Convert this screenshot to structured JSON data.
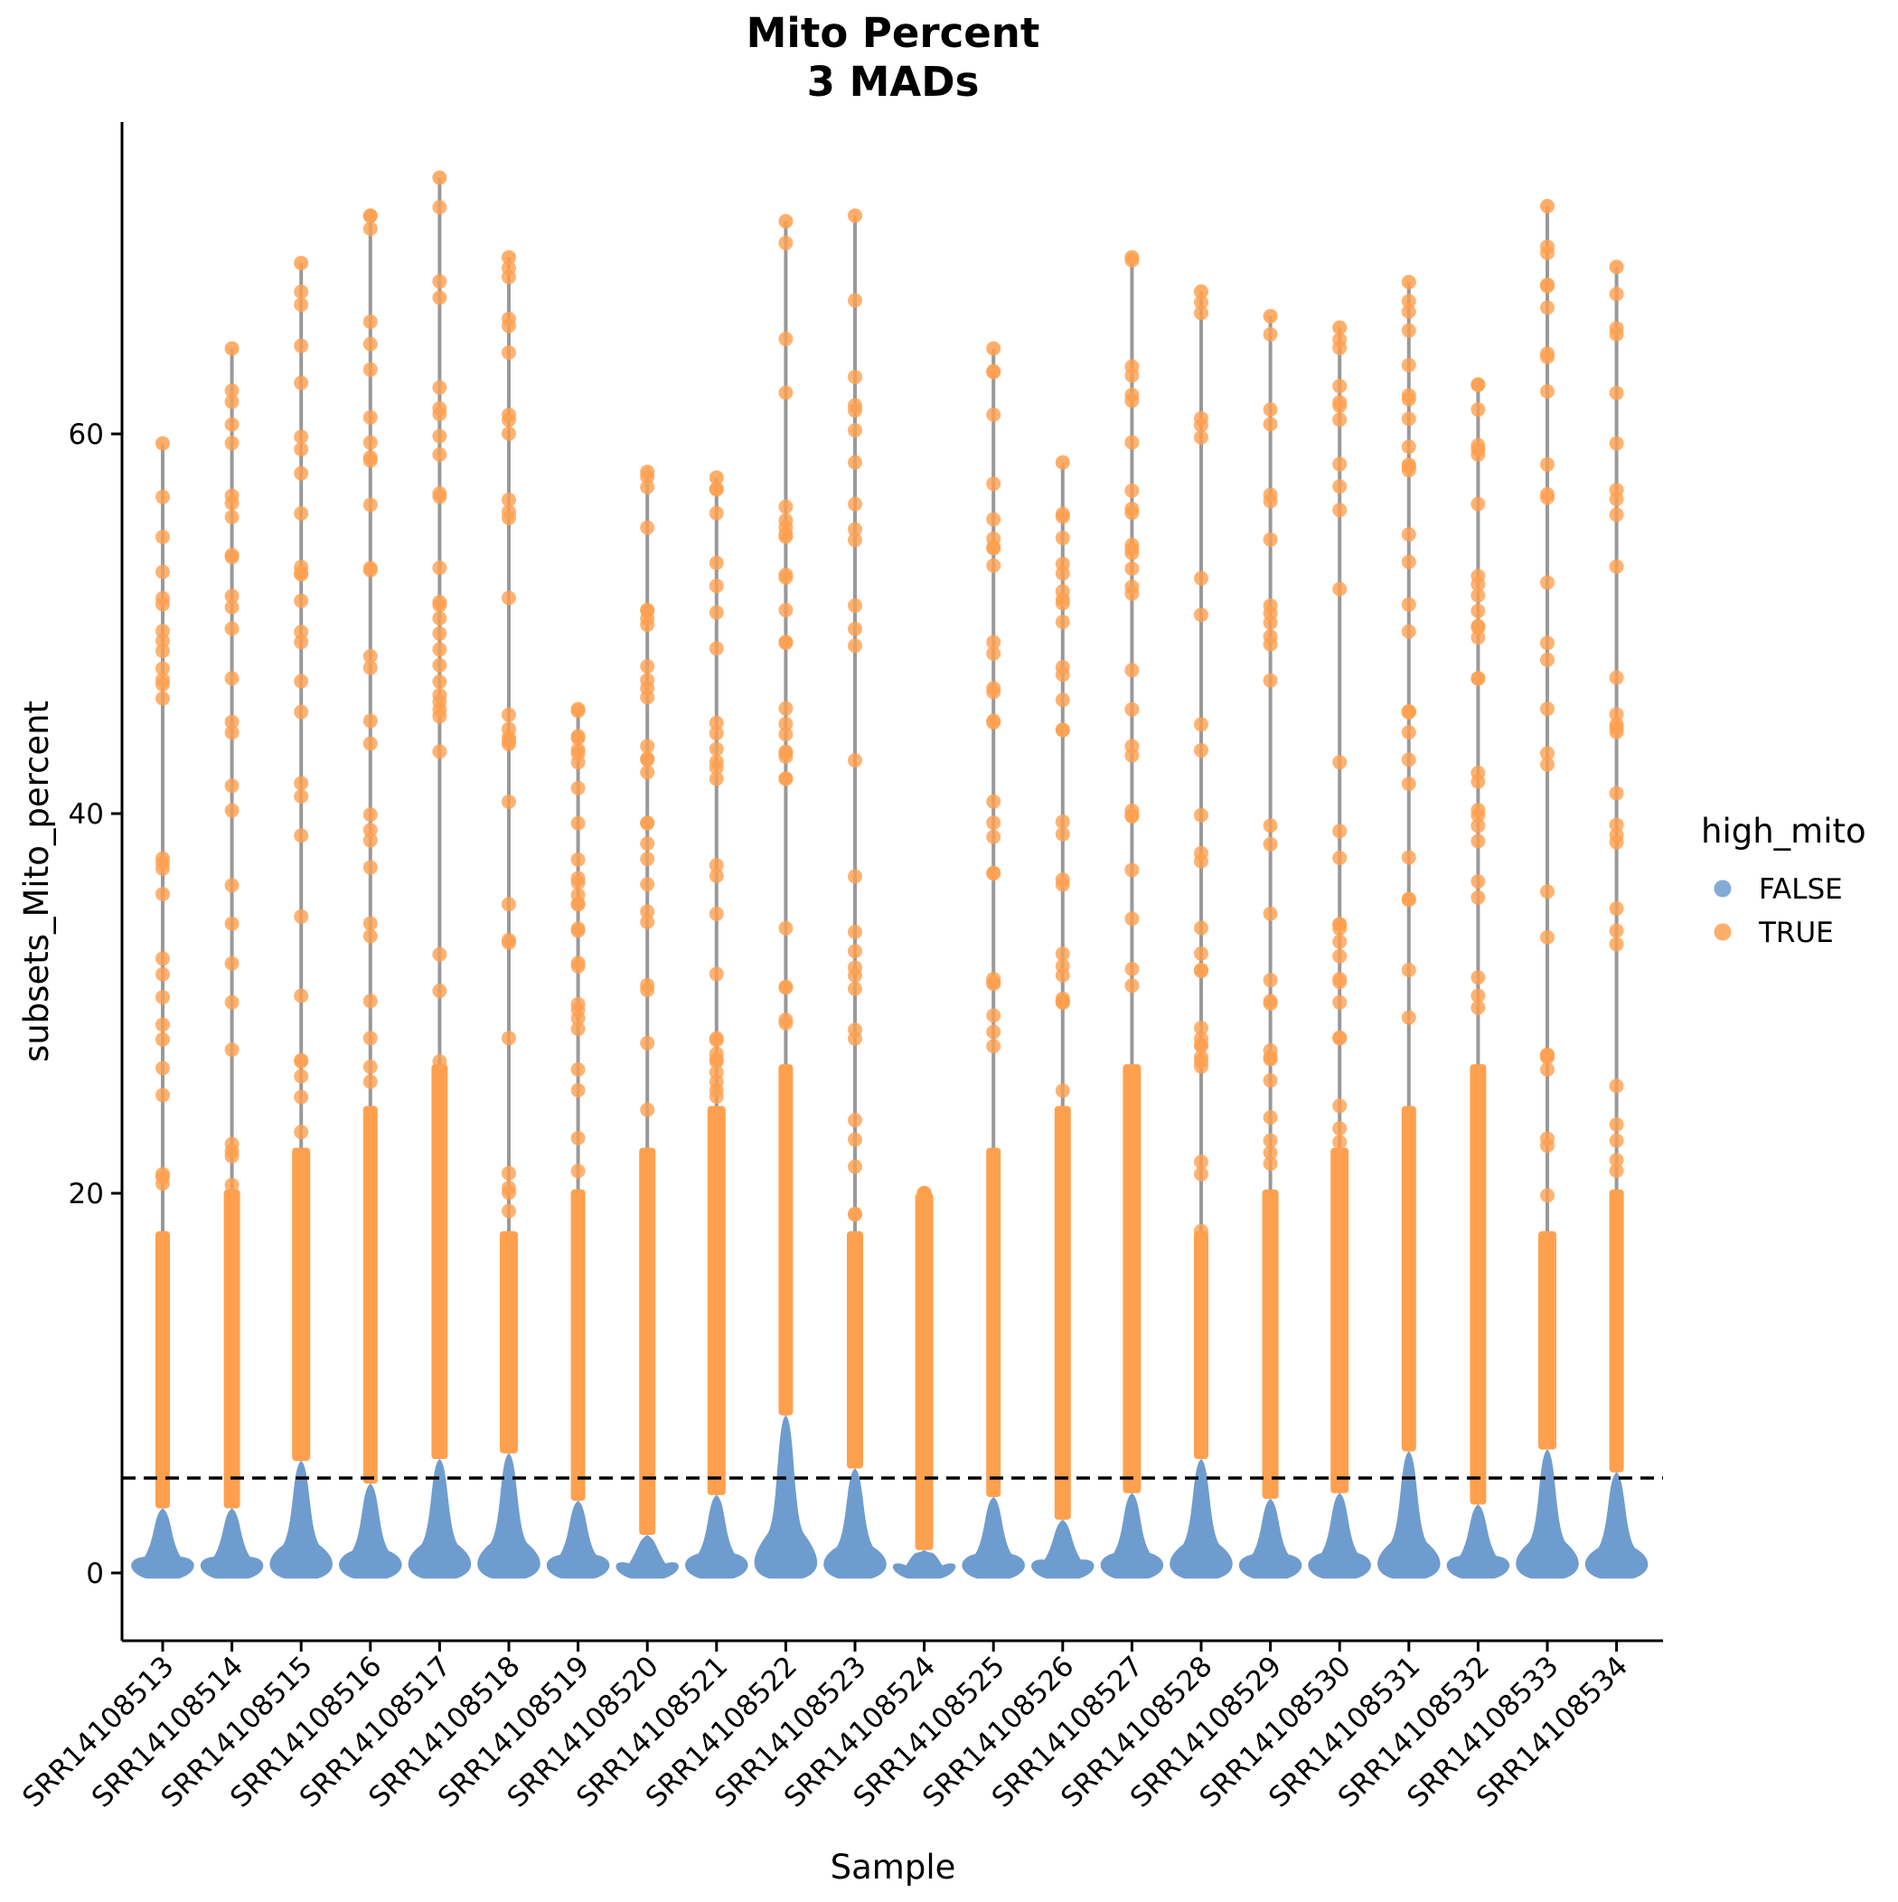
{
  "chart_data": {
    "type": "violin",
    "title": "Mito Percent",
    "subtitle": "3 MADs",
    "xlabel": "Sample",
    "ylabel": "subsets_Mito_percent",
    "ylim": [
      -3.5,
      76
    ],
    "yticks": [
      0,
      20,
      40,
      60
    ],
    "grid": false,
    "threshold": 5,
    "threshold_style": "dashed",
    "legend": {
      "title": "high_mito",
      "placement": "right",
      "entries": [
        {
          "label": "FALSE",
          "color": "#6f9ccf"
        },
        {
          "label": "TRUE",
          "color": "#ffa04f"
        }
      ]
    },
    "colors": {
      "false": "#6f9ccf",
      "true": "#ffa04f",
      "whisker": "#999999",
      "threshold": "#000000"
    },
    "categories": [
      "SRR14108513",
      "SRR14108514",
      "SRR14108515",
      "SRR14108516",
      "SRR14108517",
      "SRR14108518",
      "SRR14108519",
      "SRR14108520",
      "SRR14108521",
      "SRR14108522",
      "SRR14108523",
      "SRR14108524",
      "SRR14108525",
      "SRR14108526",
      "SRR14108527",
      "SRR14108528",
      "SRR14108529",
      "SRR14108530",
      "SRR14108531",
      "SRR14108532",
      "SRR14108533",
      "SRR14108534"
    ],
    "series": [
      {
        "name": "FALSE",
        "upper_values": [
          3.4,
          3.4,
          5.9,
          4.7,
          6.0,
          6.3,
          3.8,
          2.0,
          4.1,
          8.3,
          5.5,
          1.2,
          4.0,
          2.8,
          4.2,
          6.0,
          3.9,
          4.2,
          6.4,
          3.6,
          6.5,
          5.3
        ]
      },
      {
        "name": "TRUE",
        "max_values": [
          59.5,
          64.5,
          69.0,
          71.5,
          73.5,
          69.3,
          45.5,
          58.0,
          57.7,
          71.2,
          71.5,
          20.0,
          64.5,
          58.5,
          69.3,
          67.5,
          66.2,
          65.6,
          68.0,
          62.6,
          72.0,
          68.8
        ]
      }
    ]
  }
}
